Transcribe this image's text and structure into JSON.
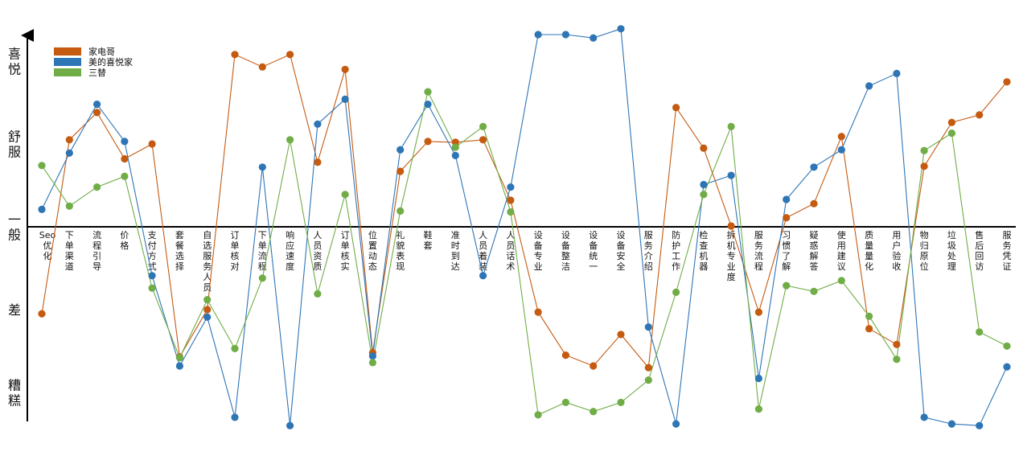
{
  "chart_data": {
    "type": "line",
    "title": "",
    "xlabel": "",
    "ylabel": "",
    "y_levels": [
      "喜悦",
      "舒服",
      "一般",
      "差",
      "糟糕"
    ],
    "ylim": [
      -2.45,
      2.45
    ],
    "categories": [
      "Seo优化",
      "下单渠道",
      "流程引导",
      "价格",
      "支付方式",
      "套餐选择",
      "自选服务人员",
      "订单核对",
      "下单流程",
      "响应速度",
      "人员资质",
      "订单核实",
      "位置动态",
      "礼貌表现",
      "鞋套",
      "准时到达",
      "人员着装",
      "人员话术",
      "设备专业",
      "设备整洁",
      "设备统一",
      "设备安全",
      "服务介绍",
      "防护工作",
      "检查机器",
      "拆机专业度",
      "服务流程",
      "习惯了解",
      "疑惑解答",
      "使用建议",
      "质量量化",
      "用户验收",
      "物归原位",
      "垃圾处理",
      "售后回访",
      "服务凭证"
    ],
    "series": [
      {
        "name": "家电哥",
        "color": "#c55a11",
        "values": [
          -1.05,
          1.05,
          1.38,
          0.82,
          1.0,
          -1.57,
          -1.0,
          2.08,
          1.93,
          2.08,
          0.78,
          1.9,
          -1.52,
          0.67,
          1.03,
          1.02,
          1.05,
          0.32,
          -1.03,
          -1.55,
          -1.68,
          -1.3,
          -1.7,
          1.44,
          0.95,
          0.01,
          -1.03,
          0.11,
          0.28,
          1.09,
          -1.23,
          -1.42,
          0.73,
          1.26,
          1.35,
          1.75
        ]
      },
      {
        "name": "美的喜悦家",
        "color": "#2e75b6",
        "values": [
          0.21,
          0.89,
          1.48,
          1.03,
          -0.59,
          -1.68,
          -1.09,
          -2.3,
          0.72,
          -2.4,
          1.24,
          1.54,
          -1.56,
          0.93,
          1.48,
          0.86,
          -0.59,
          0.48,
          2.32,
          2.32,
          2.28,
          2.39,
          -1.21,
          -2.38,
          0.51,
          0.62,
          -1.83,
          0.33,
          0.72,
          0.93,
          1.7,
          1.85,
          -2.3,
          -2.38,
          -2.4,
          -1.69
        ]
      },
      {
        "name": "三替",
        "color": "#70ad47",
        "values": [
          0.74,
          0.25,
          0.48,
          0.61,
          -0.74,
          -1.58,
          -0.88,
          -1.47,
          -0.62,
          1.05,
          -0.81,
          0.39,
          -1.64,
          0.19,
          1.63,
          0.96,
          1.21,
          0.18,
          -2.27,
          -2.12,
          -2.23,
          -2.12,
          -1.85,
          -0.79,
          0.39,
          1.21,
          -2.2,
          -0.71,
          -0.78,
          -0.65,
          -1.08,
          -1.6,
          0.92,
          1.13,
          -1.27,
          -1.44
        ]
      }
    ],
    "legend": "top-left",
    "grid": false
  }
}
